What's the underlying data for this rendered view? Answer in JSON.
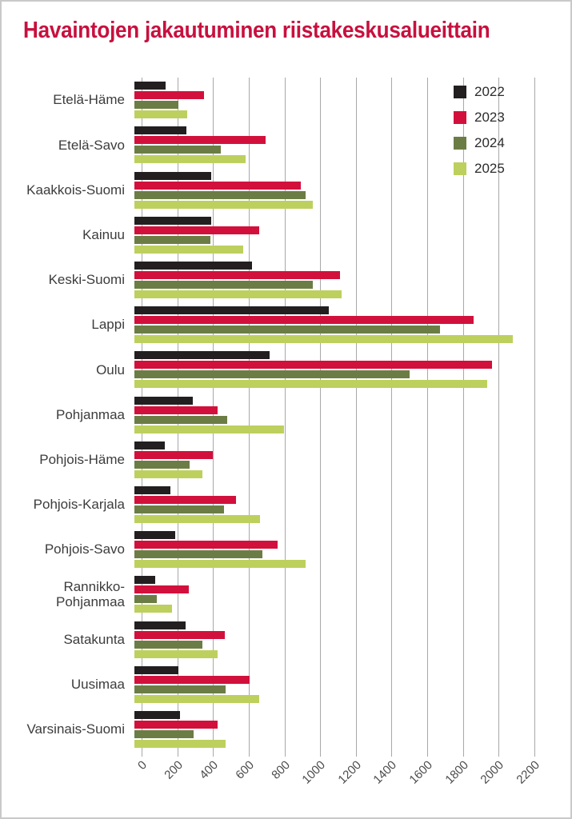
{
  "title": "Havaintojen jakautuminen riistakeskusalueittain",
  "colors": {
    "title": "#c8103e",
    "grid": "#a8a8a8",
    "axis_text": "#4b4b4b",
    "label_text": "#3c3c3c",
    "background": "#ffffff",
    "border": "#c9c9c9"
  },
  "legend": {
    "entries": [
      "2022",
      "2023",
      "2024",
      "2025"
    ],
    "position": "top-right"
  },
  "chart_data": {
    "type": "bar",
    "orientation": "horizontal",
    "title": "Havaintojen jakautuminen riistakeskusalueittain",
    "categories": [
      "Etelä-Häme",
      "Etelä-Savo",
      "Kaakkois-Suomi",
      "Kainuu",
      "Keski-Suomi",
      "Lappi",
      "Oulu",
      "Pohjanmaa",
      "Pohjois-Häme",
      "Pohjois-Karjala",
      "Pohjois-Savo",
      "Rannikko-\nPohjanmaa",
      "Satakunta",
      "Uusimaa",
      "Varsinais-Suomi"
    ],
    "series": [
      {
        "name": "2022",
        "color": "#231f20",
        "values": [
          175,
          290,
          430,
          430,
          660,
          1090,
          755,
          325,
          170,
          200,
          230,
          115,
          285,
          245,
          255
        ]
      },
      {
        "name": "2023",
        "color": "#d2103c",
        "values": [
          390,
          735,
          930,
          700,
          1150,
          1900,
          2005,
          465,
          440,
          570,
          800,
          305,
          505,
          645,
          465
        ]
      },
      {
        "name": "2024",
        "color": "#6b7d45",
        "values": [
          245,
          485,
          960,
          425,
          1000,
          1710,
          1540,
          520,
          310,
          500,
          715,
          125,
          380,
          510,
          330
        ]
      },
      {
        "name": "2025",
        "color": "#bdd05e",
        "values": [
          295,
          625,
          1000,
          610,
          1160,
          2120,
          1975,
          840,
          380,
          705,
          960,
          210,
          465,
          700,
          510
        ]
      }
    ],
    "xlim": [
      0,
      2200
    ],
    "x_ticks": [
      0,
      200,
      400,
      600,
      800,
      1000,
      1200,
      1400,
      1600,
      1800,
      2000,
      2200
    ],
    "xlabel": "",
    "ylabel": "",
    "grid": true,
    "legend_position": "top-right"
  }
}
